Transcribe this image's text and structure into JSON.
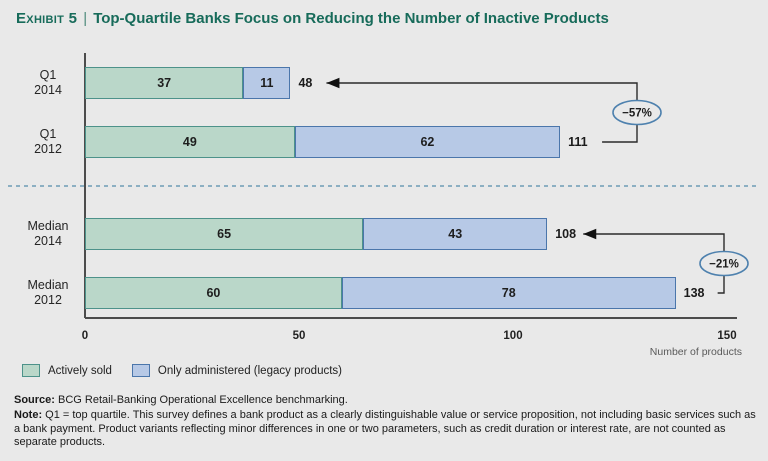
{
  "title": {
    "exhibit_label": "Exhibit 5",
    "separator": "|",
    "text": "Top-Quartile Banks Focus on Reducing the Number of Inactive Products"
  },
  "chart_data": {
    "type": "bar",
    "orientation": "horizontal",
    "stacked": true,
    "categories": [
      "Q1 2014",
      "Q1 2012",
      "Median 2014",
      "Median 2012"
    ],
    "category_lines": [
      [
        "Q1",
        "2014"
      ],
      [
        "Q1",
        "2012"
      ],
      [
        "Median",
        "2014"
      ],
      [
        "Median",
        "2012"
      ]
    ],
    "series": [
      {
        "name": "Actively sold",
        "fill": "#bad7c9",
        "border": "#4d928a",
        "values": [
          37,
          49,
          65,
          60
        ]
      },
      {
        "name": "Only administered (legacy products)",
        "fill": "#b7c9e6",
        "border": "#4b76ab",
        "values": [
          11,
          62,
          43,
          78
        ]
      }
    ],
    "totals": [
      48,
      111,
      108,
      138
    ],
    "annotations": [
      {
        "label": "−57%",
        "from_index": 0,
        "to_index": 1
      },
      {
        "label": "−21%",
        "from_index": 2,
        "to_index": 3
      }
    ],
    "x_ticks": [
      0,
      50,
      100,
      150
    ],
    "xlim": [
      0,
      150
    ],
    "xlabel": "Number of products",
    "legend_position": "bottom-left",
    "grid": false,
    "divider_after_row": 1
  },
  "footer": {
    "source_label": "Source:",
    "source_text": " BCG Retail-Banking Operational Excellence benchmarking.",
    "note_label": "Note:",
    "note_text": " Q1 = top quartile. This survey defines a bank product as a clearly distinguishable value or service proposition, not including basic services such as a bank payment. Product variants reflecting minor differences in one or two parameters, such as credit duration or interest rate, are not counted as separate products."
  },
  "colors": {
    "background": "#e9e9e9",
    "title": "#176b5a",
    "axis": "#4c4c4c",
    "divider": "#6d9cb5",
    "annotation_oval_stroke": "#4e81ae",
    "arrow": "#2b2b2b",
    "actively_sold_fill": "#bad7c9",
    "actively_sold_border": "#4d928a",
    "only_administered_fill": "#b7c9e6",
    "only_administered_border": "#4b76ab"
  }
}
